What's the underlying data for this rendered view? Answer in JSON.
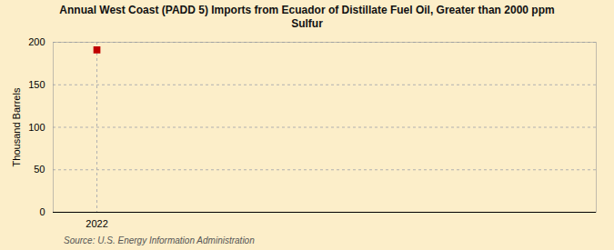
{
  "chart_data": {
    "type": "scatter",
    "title": "Annual West Coast (PADD 5) Imports from Ecuador of Distillate Fuel Oil, Greater than 2000 ppm\nSulfur",
    "ylabel": "Thousand Barrels",
    "source": "Source: U.S. Energy Information Administration",
    "x": [
      2022
    ],
    "values": [
      191
    ],
    "color": "#c00000",
    "marker": "square",
    "xlim": [
      2021.3,
      2030
    ],
    "xticks": [
      2022
    ],
    "ylim": [
      0,
      200
    ],
    "yticks": [
      0,
      50,
      100,
      150,
      200
    ],
    "grid": true
  }
}
